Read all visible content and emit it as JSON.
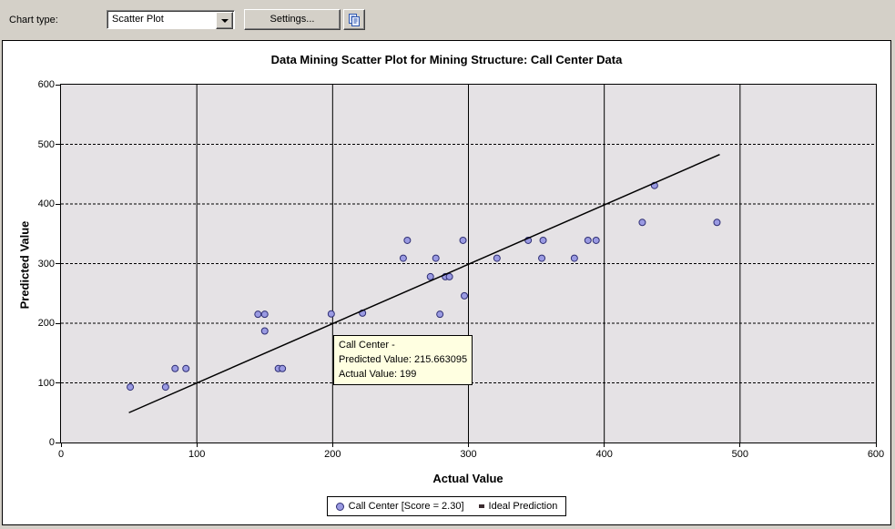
{
  "toolbar": {
    "chart_type_label": "Chart type:",
    "chart_type_value": "Scatter Plot",
    "settings_button": "Settings..."
  },
  "tooltip": {
    "title": "Call Center -",
    "predicted": "Predicted Value: 215.663095",
    "actual": "Actual Value: 199"
  },
  "legend": [
    {
      "marker": "circle",
      "label": "Call Center [Score = 2.30]"
    },
    {
      "marker": "square",
      "label": "Ideal Prediction"
    }
  ],
  "chart_data": {
    "type": "scatter",
    "title": "Data Mining Scatter Plot for Mining Structure: Call Center Data",
    "xlabel": "Actual Value",
    "ylabel": "Predicted Value",
    "xlim": [
      0,
      600
    ],
    "ylim": [
      0,
      600
    ],
    "xticks": [
      0,
      100,
      200,
      300,
      400,
      500,
      600
    ],
    "yticks": [
      0,
      100,
      200,
      300,
      400,
      500,
      600
    ],
    "grid": {
      "vertical": "solid",
      "horizontal": "dashed"
    },
    "legend_position": "bottom-center",
    "series": [
      {
        "name": "Call Center [Score = 2.30]",
        "type": "scatter",
        "marker": "circle",
        "points": [
          [
            51,
            93
          ],
          [
            77,
            93
          ],
          [
            84,
            124
          ],
          [
            92,
            124
          ],
          [
            145,
            215
          ],
          [
            150,
            215
          ],
          [
            150,
            187
          ],
          [
            160,
            124
          ],
          [
            163,
            124
          ],
          [
            199,
            215.663095
          ],
          [
            222,
            217
          ],
          [
            252,
            309
          ],
          [
            255,
            339
          ],
          [
            272,
            278
          ],
          [
            276,
            309
          ],
          [
            279,
            215
          ],
          [
            283,
            278
          ],
          [
            286,
            278
          ],
          [
            296,
            339
          ],
          [
            297,
            246
          ],
          [
            321,
            309
          ],
          [
            344,
            339
          ],
          [
            354,
            309
          ],
          [
            355,
            339
          ],
          [
            378,
            309
          ],
          [
            388,
            339
          ],
          [
            394,
            339
          ],
          [
            428,
            369
          ],
          [
            437,
            431
          ],
          [
            483,
            369
          ]
        ]
      },
      {
        "name": "Ideal Prediction",
        "type": "line",
        "points": [
          [
            50,
            50
          ],
          [
            485,
            483
          ]
        ]
      }
    ],
    "highlighted_point": {
      "actual_value": 199,
      "predicted_value": 215.663095
    },
    "colors": {
      "window_bg": "#d4d0c8",
      "plot_bg": "#e5e2e5",
      "marker_fill": "#9a9ae2",
      "marker_stroke": "#2e2e74",
      "line": "#000000",
      "grid": "#000000",
      "tooltip_bg": "#ffffe1"
    }
  }
}
